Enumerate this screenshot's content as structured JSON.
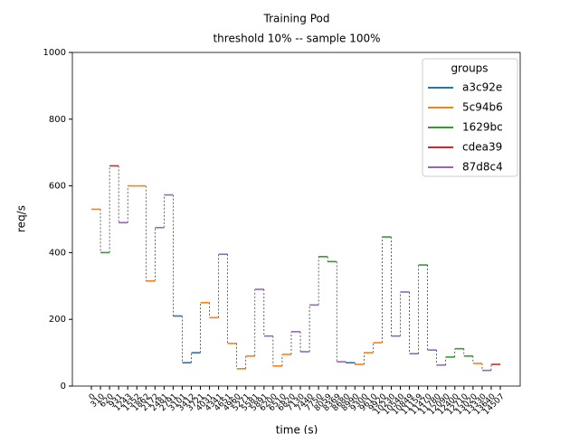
{
  "chart_data": {
    "type": "step",
    "title": "Training Pod",
    "subtitle": "threshold 10% -- sample 100%",
    "x_label": "time (s)",
    "y_label": "req/s",
    "legend_title": "groups",
    "legend_position": "upper right",
    "categories": [
      "0",
      "310",
      "620",
      "931",
      "1243",
      "1552",
      "1862",
      "2172",
      "2481",
      "2791",
      "3101",
      "3412",
      "3721",
      "4031",
      "4341",
      "4651",
      "4960",
      "5271",
      "5581",
      "5891",
      "6200",
      "6510",
      "6820",
      "7130",
      "7440",
      "7750",
      "8059",
      "8369",
      "8680",
      "8990",
      "9300",
      "9610",
      "9920",
      "10230",
      "10540",
      "10849",
      "11159",
      "11470",
      "11780",
      "12090",
      "12400",
      "12710",
      "13020",
      "13330",
      "13640",
      "14507"
    ],
    "ylim": [
      0,
      1000
    ],
    "yticks": [
      0,
      200,
      400,
      600,
      800,
      1000
    ],
    "grid": false,
    "series": [
      {
        "name": "a3c92e",
        "color": "#1f77b4",
        "values": [
          null,
          null,
          null,
          null,
          null,
          null,
          null,
          null,
          null,
          210,
          70,
          100,
          null,
          null,
          null,
          null,
          null,
          null,
          null,
          null,
          null,
          null,
          null,
          null,
          null,
          null,
          null,
          null,
          70,
          null,
          null,
          null,
          null,
          null,
          null,
          null,
          null,
          null,
          null,
          null,
          null,
          null,
          null,
          null,
          null,
          null
        ]
      },
      {
        "name": "5c94b6",
        "color": "#ff7f0e",
        "values": [
          530,
          null,
          null,
          null,
          600,
          600,
          315,
          null,
          null,
          null,
          null,
          null,
          250,
          205,
          null,
          128,
          52,
          90,
          null,
          null,
          60,
          95,
          null,
          null,
          null,
          null,
          null,
          null,
          null,
          65,
          100,
          130,
          null,
          null,
          null,
          null,
          null,
          null,
          null,
          null,
          null,
          null,
          68,
          null,
          null,
          null
        ]
      },
      {
        "name": "1629bc",
        "color": "#2ca02c",
        "values": [
          null,
          400,
          null,
          null,
          null,
          null,
          null,
          null,
          null,
          null,
          null,
          null,
          null,
          null,
          null,
          null,
          null,
          null,
          null,
          null,
          null,
          null,
          null,
          null,
          null,
          388,
          373,
          null,
          null,
          null,
          null,
          null,
          447,
          null,
          null,
          null,
          363,
          null,
          null,
          87,
          112,
          90,
          null,
          null,
          null,
          null
        ]
      },
      {
        "name": "cdea39",
        "color": "#d62728",
        "values": [
          null,
          null,
          660,
          null,
          null,
          null,
          null,
          null,
          null,
          null,
          null,
          null,
          null,
          null,
          null,
          null,
          null,
          null,
          null,
          null,
          null,
          null,
          null,
          null,
          null,
          null,
          null,
          null,
          null,
          null,
          null,
          null,
          null,
          null,
          null,
          null,
          null,
          null,
          null,
          null,
          null,
          null,
          null,
          null,
          65,
          null
        ]
      },
      {
        "name": "87d8c4",
        "color": "#9467bd",
        "values": [
          null,
          null,
          null,
          490,
          null,
          null,
          null,
          475,
          573,
          null,
          null,
          null,
          null,
          null,
          395,
          null,
          null,
          null,
          290,
          150,
          null,
          null,
          163,
          103,
          243,
          null,
          null,
          73,
          null,
          null,
          null,
          null,
          null,
          150,
          282,
          97,
          null,
          108,
          63,
          null,
          null,
          null,
          null,
          47,
          null,
          null
        ]
      }
    ]
  }
}
